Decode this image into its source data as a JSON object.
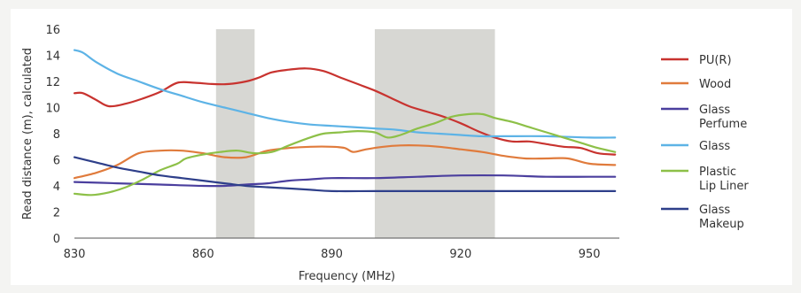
{
  "chart_data": {
    "type": "line",
    "xlabel": "Frequency (MHz)",
    "ylabel": "Read distance (m), calculated",
    "xlim": [
      830,
      957
    ],
    "ylim": [
      0,
      16
    ],
    "x_ticks": [
      "830",
      "860",
      "890",
      "920",
      "950"
    ],
    "y_ticks": [
      "0",
      "2",
      "4",
      "6",
      "8",
      "10",
      "12",
      "14",
      "16"
    ],
    "shaded_bands": [
      {
        "x_start": 863,
        "x_end": 872
      },
      {
        "x_start": 900,
        "x_end": 928
      }
    ],
    "legend_position": "right",
    "grid": false,
    "series": [
      {
        "name": "PU(R)",
        "lines": [
          "PU(R)"
        ],
        "color": "#c8332f",
        "points": [
          [
            830,
            11.1
          ],
          [
            832,
            11.1
          ],
          [
            835,
            10.6
          ],
          [
            838,
            10.1
          ],
          [
            842,
            10.3
          ],
          [
            846,
            10.7
          ],
          [
            850,
            11.2
          ],
          [
            854,
            11.9
          ],
          [
            858,
            11.9
          ],
          [
            862,
            11.8
          ],
          [
            866,
            11.8
          ],
          [
            870,
            12.0
          ],
          [
            873,
            12.3
          ],
          [
            876,
            12.7
          ],
          [
            880,
            12.9
          ],
          [
            884,
            13.0
          ],
          [
            888,
            12.8
          ],
          [
            892,
            12.3
          ],
          [
            896,
            11.8
          ],
          [
            900,
            11.3
          ],
          [
            904,
            10.7
          ],
          [
            908,
            10.1
          ],
          [
            912,
            9.7
          ],
          [
            916,
            9.3
          ],
          [
            920,
            8.8
          ],
          [
            924,
            8.2
          ],
          [
            928,
            7.7
          ],
          [
            932,
            7.4
          ],
          [
            936,
            7.4
          ],
          [
            940,
            7.2
          ],
          [
            944,
            7.0
          ],
          [
            948,
            6.9
          ],
          [
            952,
            6.5
          ],
          [
            956,
            6.4
          ]
        ]
      },
      {
        "name": "Wood",
        "lines": [
          "Wood"
        ],
        "color": "#e07b3c",
        "points": [
          [
            830,
            4.6
          ],
          [
            835,
            5.0
          ],
          [
            840,
            5.6
          ],
          [
            845,
            6.5
          ],
          [
            850,
            6.7
          ],
          [
            855,
            6.7
          ],
          [
            860,
            6.5
          ],
          [
            865,
            6.2
          ],
          [
            870,
            6.2
          ],
          [
            875,
            6.7
          ],
          [
            880,
            6.9
          ],
          [
            885,
            7.0
          ],
          [
            890,
            7.0
          ],
          [
            893,
            6.9
          ],
          [
            895,
            6.6
          ],
          [
            898,
            6.8
          ],
          [
            902,
            7.0
          ],
          [
            906,
            7.1
          ],
          [
            910,
            7.1
          ],
          [
            915,
            7.0
          ],
          [
            920,
            6.8
          ],
          [
            925,
            6.6
          ],
          [
            930,
            6.3
          ],
          [
            935,
            6.1
          ],
          [
            940,
            6.1
          ],
          [
            945,
            6.1
          ],
          [
            950,
            5.7
          ],
          [
            956,
            5.6
          ]
        ]
      },
      {
        "name": "Glass Perfume",
        "lines": [
          "Glass",
          "Perfume"
        ],
        "color": "#4b3f9e",
        "points": [
          [
            830,
            4.3
          ],
          [
            840,
            4.2
          ],
          [
            850,
            4.1
          ],
          [
            860,
            4.0
          ],
          [
            865,
            4.0
          ],
          [
            870,
            4.1
          ],
          [
            875,
            4.2
          ],
          [
            880,
            4.4
          ],
          [
            885,
            4.5
          ],
          [
            890,
            4.6
          ],
          [
            900,
            4.6
          ],
          [
            910,
            4.7
          ],
          [
            920,
            4.8
          ],
          [
            930,
            4.8
          ],
          [
            940,
            4.7
          ],
          [
            950,
            4.7
          ],
          [
            956,
            4.7
          ]
        ]
      },
      {
        "name": "Glass",
        "lines": [
          "Glass"
        ],
        "color": "#5db3e6",
        "points": [
          [
            830,
            14.4
          ],
          [
            832,
            14.2
          ],
          [
            835,
            13.5
          ],
          [
            840,
            12.6
          ],
          [
            845,
            12.0
          ],
          [
            850,
            11.4
          ],
          [
            855,
            10.9
          ],
          [
            860,
            10.4
          ],
          [
            865,
            10.0
          ],
          [
            870,
            9.6
          ],
          [
            875,
            9.2
          ],
          [
            880,
            8.9
          ],
          [
            885,
            8.7
          ],
          [
            890,
            8.6
          ],
          [
            895,
            8.5
          ],
          [
            900,
            8.4
          ],
          [
            905,
            8.3
          ],
          [
            910,
            8.1
          ],
          [
            915,
            8.0
          ],
          [
            920,
            7.9
          ],
          [
            925,
            7.8
          ],
          [
            930,
            7.8
          ],
          [
            940,
            7.8
          ],
          [
            950,
            7.7
          ],
          [
            956,
            7.7
          ]
        ]
      },
      {
        "name": "Plastic Lip Liner",
        "lines": [
          "Plastic",
          "Lip Liner"
        ],
        "color": "#8dc048",
        "points": [
          [
            830,
            3.4
          ],
          [
            834,
            3.3
          ],
          [
            838,
            3.5
          ],
          [
            842,
            3.9
          ],
          [
            846,
            4.5
          ],
          [
            850,
            5.2
          ],
          [
            854,
            5.7
          ],
          [
            856,
            6.1
          ],
          [
            860,
            6.4
          ],
          [
            864,
            6.6
          ],
          [
            868,
            6.7
          ],
          [
            872,
            6.5
          ],
          [
            876,
            6.6
          ],
          [
            880,
            7.1
          ],
          [
            884,
            7.6
          ],
          [
            888,
            8.0
          ],
          [
            892,
            8.1
          ],
          [
            896,
            8.2
          ],
          [
            900,
            8.1
          ],
          [
            903,
            7.7
          ],
          [
            906,
            7.9
          ],
          [
            910,
            8.4
          ],
          [
            914,
            8.8
          ],
          [
            918,
            9.3
          ],
          [
            922,
            9.5
          ],
          [
            925,
            9.5
          ],
          [
            928,
            9.2
          ],
          [
            932,
            8.9
          ],
          [
            936,
            8.5
          ],
          [
            940,
            8.1
          ],
          [
            944,
            7.7
          ],
          [
            948,
            7.3
          ],
          [
            952,
            6.9
          ],
          [
            956,
            6.6
          ]
        ]
      },
      {
        "name": "Glass Makeup",
        "lines": [
          "Glass",
          "Makeup"
        ],
        "color": "#2e3f8a",
        "points": [
          [
            830,
            6.2
          ],
          [
            835,
            5.8
          ],
          [
            840,
            5.4
          ],
          [
            845,
            5.1
          ],
          [
            850,
            4.8
          ],
          [
            855,
            4.6
          ],
          [
            860,
            4.4
          ],
          [
            865,
            4.2
          ],
          [
            870,
            4.0
          ],
          [
            875,
            3.9
          ],
          [
            880,
            3.8
          ],
          [
            885,
            3.7
          ],
          [
            890,
            3.6
          ],
          [
            900,
            3.6
          ],
          [
            910,
            3.6
          ],
          [
            920,
            3.6
          ],
          [
            930,
            3.6
          ],
          [
            940,
            3.6
          ],
          [
            950,
            3.6
          ],
          [
            956,
            3.6
          ]
        ]
      }
    ]
  }
}
